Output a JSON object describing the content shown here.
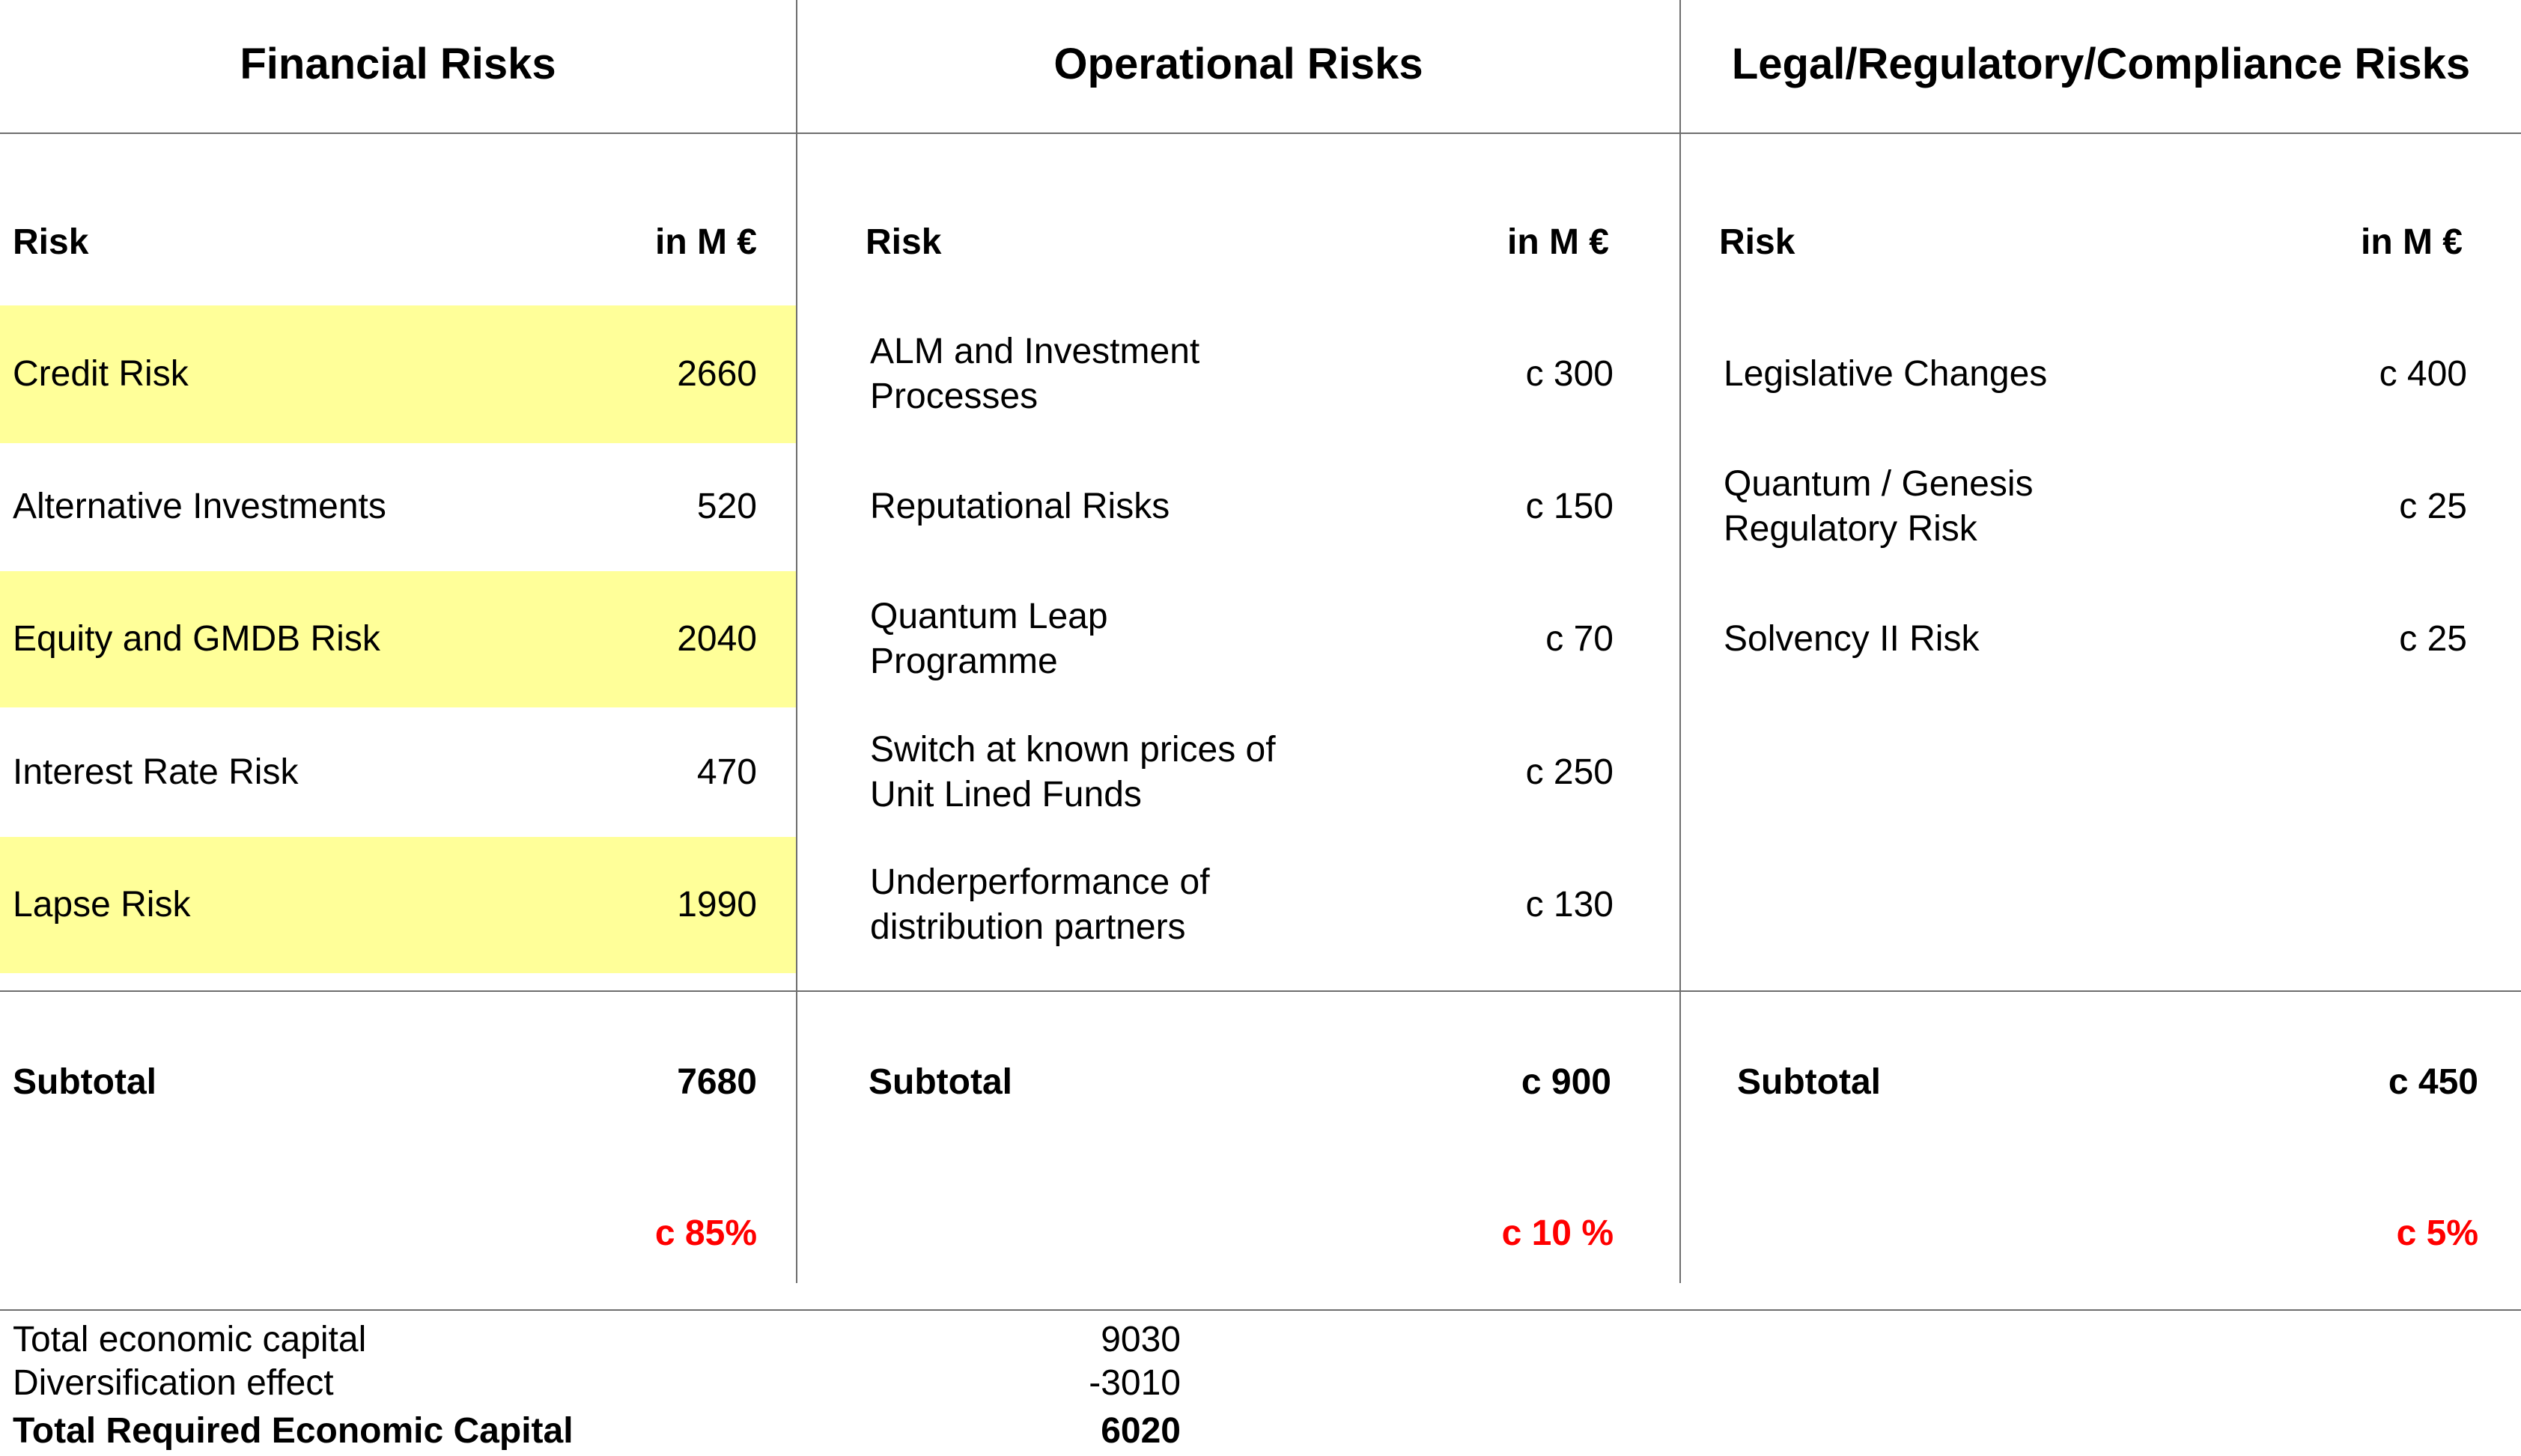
{
  "financial": {
    "title": "Financial Risks",
    "header_risk": "Risk",
    "header_unit": "in M €",
    "rows": [
      {
        "risk": "Credit Risk",
        "value": "2660"
      },
      {
        "risk": "Alternative Investments",
        "value": "520"
      },
      {
        "risk": "Equity and GMDB Risk",
        "value": "2040"
      },
      {
        "risk": "Interest Rate Risk",
        "value": "470"
      },
      {
        "risk": "Lapse Risk",
        "value": "1990"
      }
    ],
    "subtotal_label": "Subtotal",
    "subtotal_value": "7680",
    "share": "c 85%",
    "highlight_color": "#ffff99"
  },
  "operational": {
    "title": "Operational Risks",
    "header_risk": "Risk",
    "header_unit": "in M €",
    "rows": [
      {
        "risk": "ALM and Investment Processes",
        "value": "c 300"
      },
      {
        "risk": "Reputational Risks",
        "value": "c 150"
      },
      {
        "risk": "Quantum Leap Programme",
        "value": "c 70"
      },
      {
        "risk": "Switch at known prices of Unit Lined Funds",
        "value": "c 250"
      },
      {
        "risk": "Underperformance of distribution partners",
        "value": "c 130"
      }
    ],
    "subtotal_label": "Subtotal",
    "subtotal_value": "c 900",
    "share": "c 10 %"
  },
  "legal": {
    "title": "Legal/Regulatory/Compliance Risks",
    "header_risk": "Risk",
    "header_unit": "in M €",
    "rows": [
      {
        "risk": "Legislative Changes",
        "value": "c 400"
      },
      {
        "risk": "Quantum / Genesis Regulatory Risk",
        "value": "c 25"
      },
      {
        "risk": "Solvency II Risk",
        "value": "c 25"
      }
    ],
    "subtotal_label": "Subtotal",
    "subtotal_value": "c 450",
    "share": "c 5%"
  },
  "totals": {
    "economic_capital_label": "Total economic capital",
    "economic_capital_value": "9030",
    "diversification_label": "Diversification effect",
    "diversification_value": "-3010",
    "required_label": "Total Required Economic Capital",
    "required_value": "6020"
  },
  "colors": {
    "share_text": "#ff0000",
    "divider": "#6e6e6e"
  }
}
